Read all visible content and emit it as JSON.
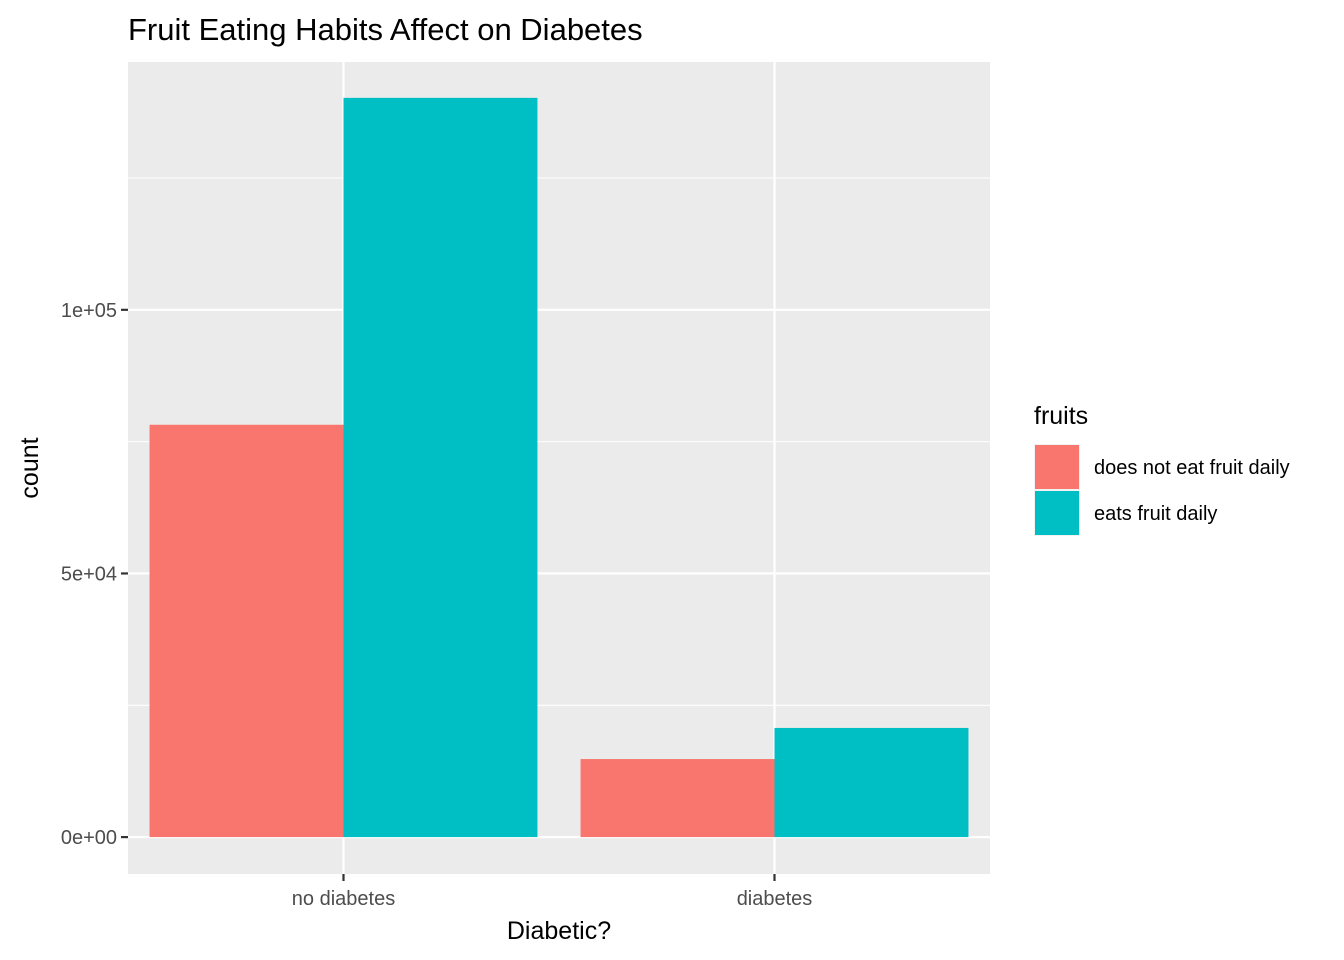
{
  "chart_data": {
    "type": "bar",
    "title": "Fruit Eating Habits Affect on Diabetes",
    "xlabel": "Diabetic?",
    "ylabel": "count",
    "categories": [
      "no diabetes",
      "diabetes"
    ],
    "series": [
      {
        "name": "does not eat fruit daily",
        "color": "#F8766D",
        "values": [
          78200,
          14800
        ]
      },
      {
        "name": "eats fruit daily",
        "color": "#00BFC4",
        "values": [
          140200,
          20700
        ]
      }
    ],
    "yticks": [
      {
        "value": 0,
        "label": "0e+00"
      },
      {
        "value": 50000,
        "label": "5e+04"
      },
      {
        "value": 100000,
        "label": "1e+05"
      }
    ],
    "ylim": [
      -7000,
      147000
    ],
    "grid": true,
    "panel_background": "#EBEBEB",
    "legend": {
      "title": "fruits",
      "position": "right"
    }
  }
}
